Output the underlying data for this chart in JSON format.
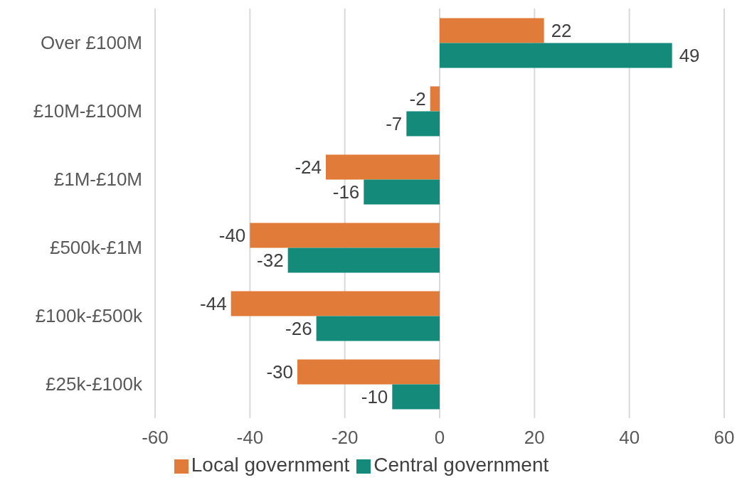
{
  "chart_data": {
    "type": "bar",
    "orientation": "horizontal",
    "categories": [
      "Over £100M",
      "£10M-£100M",
      "£1M-£10M",
      "£500k-£1M",
      "£100k-£500k",
      "£25k-£100k"
    ],
    "series": [
      {
        "name": "Local government",
        "color": "#e07b39",
        "values": [
          22,
          -2,
          -24,
          -40,
          -44,
          -30
        ]
      },
      {
        "name": "Central government",
        "color": "#138a7a",
        "values": [
          49,
          -7,
          -16,
          -32,
          -26,
          -10
        ]
      }
    ],
    "xlim": [
      -60,
      60
    ],
    "xticks": [
      -60,
      -40,
      -20,
      0,
      20,
      40,
      60
    ],
    "grid": "x",
    "legend": "bottom",
    "data_labels": true
  }
}
